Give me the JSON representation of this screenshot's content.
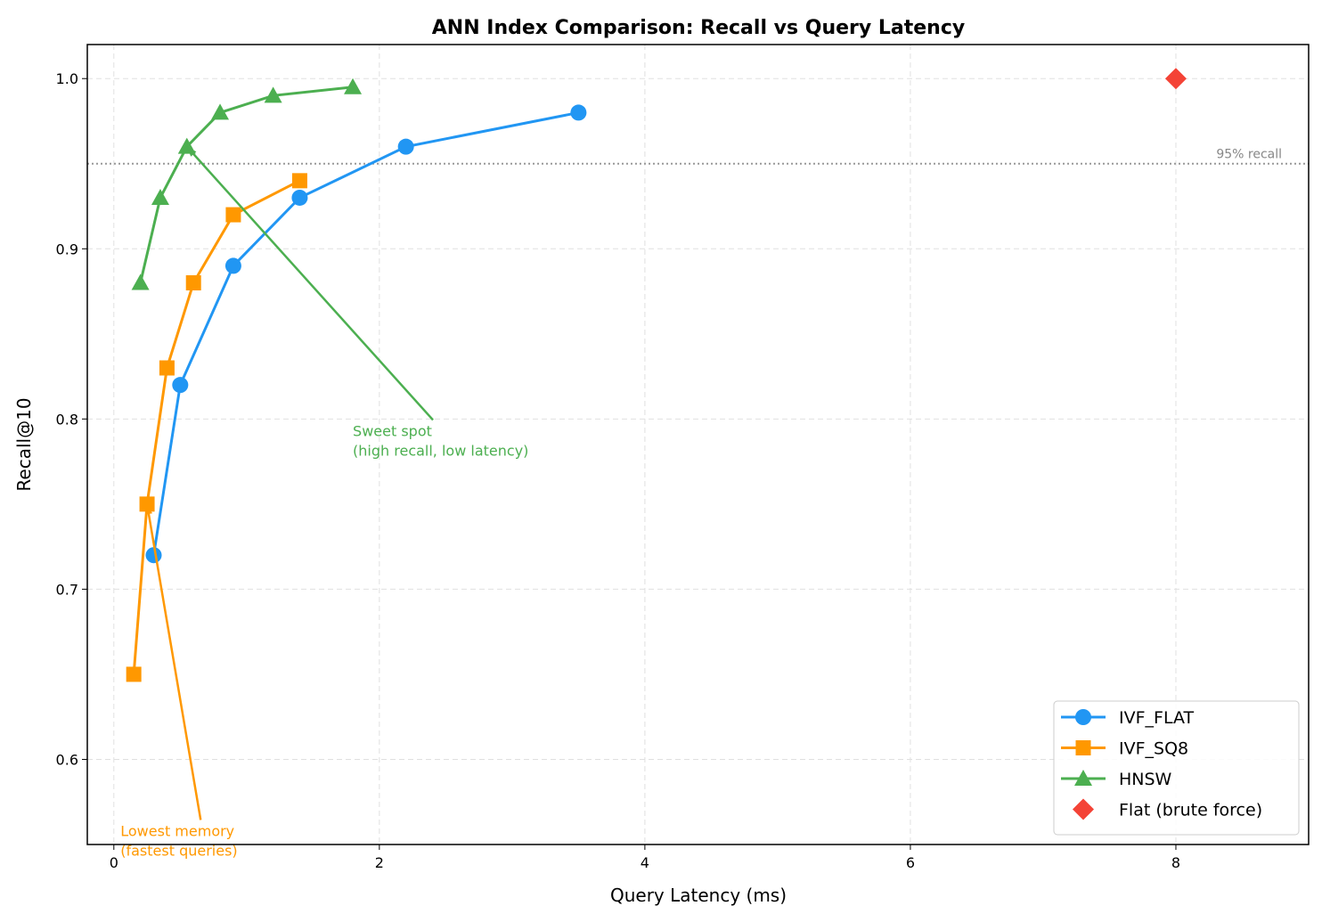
{
  "chart_data": {
    "type": "line",
    "title": "ANN Index Comparison: Recall vs Query Latency",
    "x_label": "Query Latency (ms)",
    "y_label": "Recall@10",
    "xlim": [
      -0.2,
      9.0
    ],
    "ylim": [
      0.55,
      1.02
    ],
    "xticks": [
      0,
      2,
      4,
      6,
      8
    ],
    "yticks": [
      0.6,
      0.7,
      0.8,
      0.9,
      {
        "value": 1.0,
        "label": "1.0"
      }
    ],
    "grid": true,
    "legend": "lower right",
    "series": [
      {
        "name": "IVF_FLAT",
        "color": "#2196F3",
        "marker": "circle",
        "line": true,
        "x": [
          0.3,
          0.5,
          0.9,
          1.4,
          2.2,
          3.5
        ],
        "values": [
          0.72,
          0.82,
          0.89,
          0.93,
          0.96,
          0.98
        ]
      },
      {
        "name": "IVF_SQ8",
        "color": "#FF9800",
        "marker": "square",
        "line": true,
        "x": [
          0.15,
          0.25,
          0.4,
          0.6,
          0.9,
          1.4
        ],
        "values": [
          0.65,
          0.75,
          0.83,
          0.88,
          0.92,
          0.94
        ]
      },
      {
        "name": "HNSW",
        "color": "#4CAF50",
        "marker": "triangle",
        "line": true,
        "x": [
          0.2,
          0.35,
          0.55,
          0.8,
          1.2,
          1.8
        ],
        "values": [
          0.88,
          0.93,
          0.96,
          0.98,
          0.99,
          0.995
        ]
      },
      {
        "name": "Flat (brute force)",
        "color": "#F44336",
        "marker": "diamond",
        "line": false,
        "x": [
          8
        ],
        "values": [
          1.0
        ]
      }
    ],
    "hline": {
      "value": 0.95,
      "label": "95% recall",
      "color": "#999999"
    },
    "annotations": [
      {
        "text": [
          "Sweet spot",
          "(high recall, low latency)"
        ],
        "color": "#4CAF50",
        "xy": [
          0.55,
          0.96
        ],
        "xytext": [
          1.8,
          0.79
        ]
      },
      {
        "text": [
          "Lowest memory",
          "(fastest queries)"
        ],
        "color": "#FF9800",
        "xy": [
          0.25,
          0.75
        ],
        "xytext": [
          0.05,
          0.555
        ]
      }
    ]
  }
}
